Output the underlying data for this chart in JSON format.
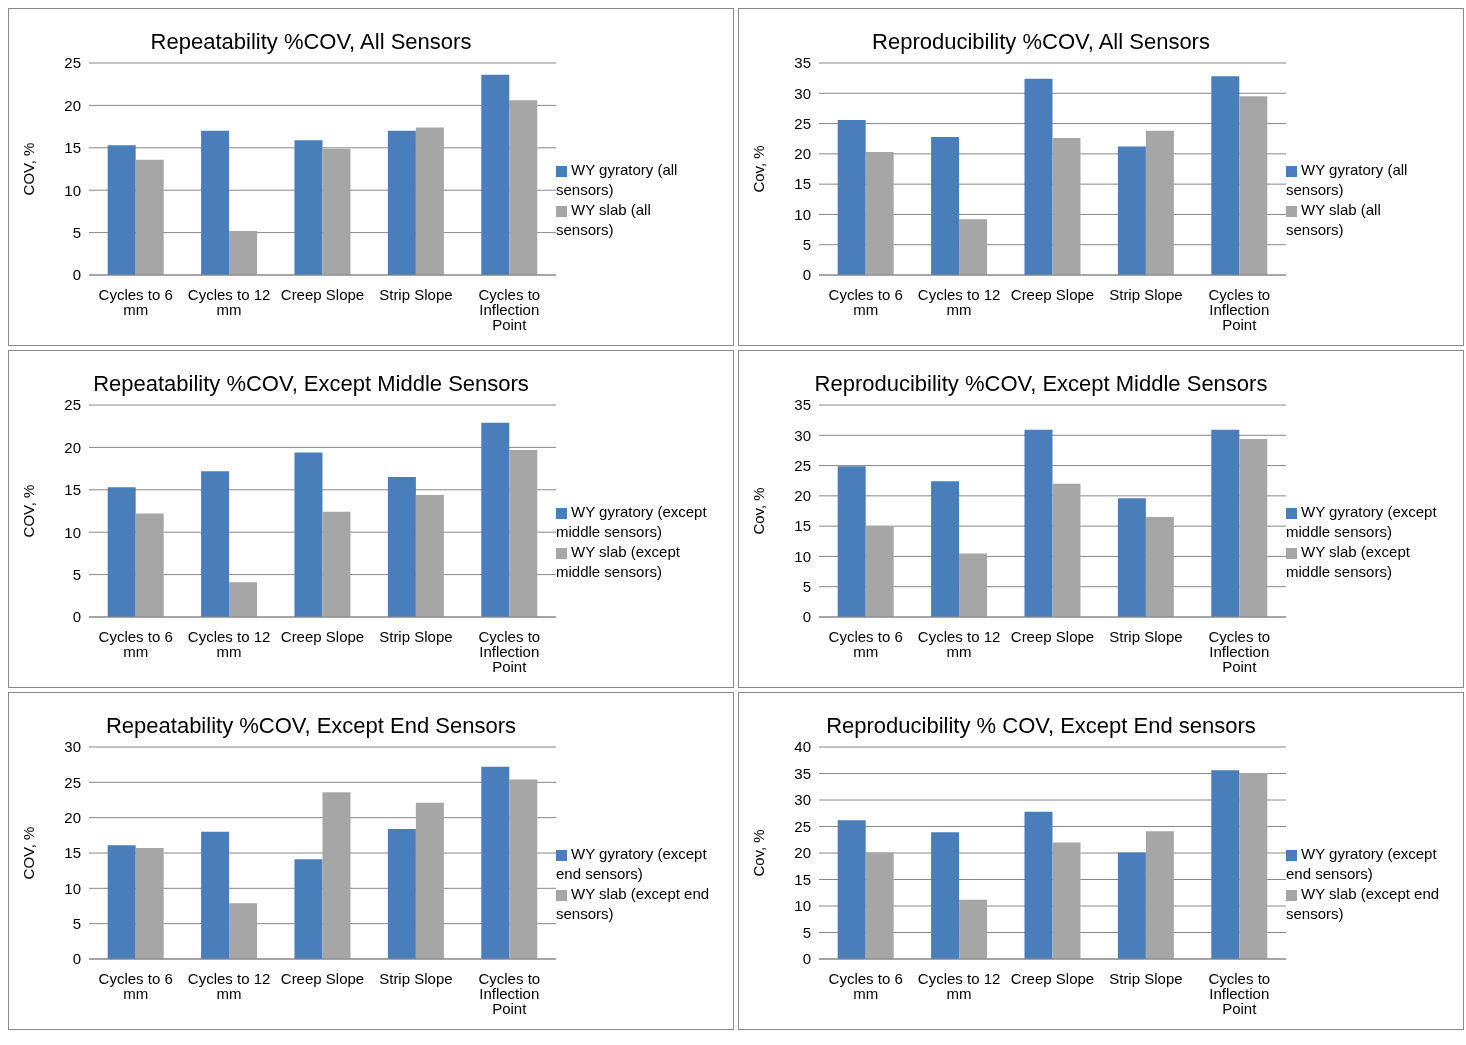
{
  "chart_data": [
    {
      "type": "bar",
      "title": "Repeatability %COV, All Sensors",
      "ylabel": "COV, %",
      "categories": [
        "Cycles to 6 mm",
        "Cycles to 12 mm",
        "Creep Slope",
        "Strip Slope",
        "Cycles to Inflection Point"
      ],
      "series": [
        {
          "name": "WY gyratory (all sensors)",
          "color": "#4a7ebb",
          "values": [
            15.3,
            17.0,
            15.9,
            17.0,
            23.6
          ]
        },
        {
          "name": "WY slab (all sensors)",
          "color": "#a6a6a6",
          "values": [
            13.6,
            5.2,
            14.9,
            17.4,
            20.6
          ]
        }
      ],
      "ylim": [
        0,
        25
      ],
      "yticks": [
        0,
        5,
        10,
        15,
        20,
        25
      ],
      "grid": "y",
      "legend": "right"
    },
    {
      "type": "bar",
      "title": "Reproducibility %COV, All Sensors",
      "ylabel": "Cov, %",
      "categories": [
        "Cycles to 6 mm",
        "Cycles to 12 mm",
        "Creep Slope",
        "Strip Slope",
        "Cycles to Inflection Point"
      ],
      "series": [
        {
          "name": "WY gyratory (all sensors)",
          "color": "#4a7ebb",
          "values": [
            25.6,
            22.8,
            32.4,
            21.2,
            32.8
          ]
        },
        {
          "name": "WY slab (all sensors)",
          "color": "#a6a6a6",
          "values": [
            20.3,
            9.2,
            22.6,
            23.8,
            29.5
          ]
        }
      ],
      "ylim": [
        0,
        35
      ],
      "yticks": [
        0,
        5,
        10,
        15,
        20,
        25,
        30,
        35
      ],
      "grid": "y",
      "legend": "right"
    },
    {
      "type": "bar",
      "title": "Repeatability %COV, Except Middle Sensors",
      "ylabel": "COV, %",
      "categories": [
        "Cycles to 6 mm",
        "Cycles to 12 mm",
        "Creep Slope",
        "Strip Slope",
        "Cycles to Inflection Point"
      ],
      "series": [
        {
          "name": "WY gyratory (except middle sensors)",
          "color": "#4a7ebb",
          "values": [
            15.3,
            17.2,
            19.4,
            16.5,
            22.9
          ]
        },
        {
          "name": "WY slab (except middle sensors)",
          "color": "#a6a6a6",
          "values": [
            12.2,
            4.1,
            12.4,
            14.4,
            19.7
          ]
        }
      ],
      "ylim": [
        0,
        25
      ],
      "yticks": [
        0,
        5,
        10,
        15,
        20,
        25
      ],
      "grid": "y",
      "legend": "right"
    },
    {
      "type": "bar",
      "title": "Reproducibility %COV, Except Middle Sensors",
      "ylabel": "Cov, %",
      "categories": [
        "Cycles to 6 mm",
        "Cycles to 12 mm",
        "Creep Slope",
        "Strip Slope",
        "Cycles to Inflection Point"
      ],
      "series": [
        {
          "name": "WY gyratory (except middle sensors)",
          "color": "#4a7ebb",
          "values": [
            24.9,
            22.4,
            30.9,
            19.6,
            30.9
          ]
        },
        {
          "name": "WY slab (except middle sensors)",
          "color": "#a6a6a6",
          "values": [
            15.0,
            10.5,
            22.0,
            16.5,
            29.4
          ]
        }
      ],
      "ylim": [
        0,
        35
      ],
      "yticks": [
        0,
        5,
        10,
        15,
        20,
        25,
        30,
        35
      ],
      "grid": "y",
      "legend": "right"
    },
    {
      "type": "bar",
      "title": "Repeatability %COV, Except End Sensors",
      "ylabel": "COV, %",
      "categories": [
        "Cycles to 6 mm",
        "Cycles to 12 mm",
        "Creep Slope",
        "Strip Slope",
        "Cycles to Inflection Point"
      ],
      "series": [
        {
          "name": "WY gyratory (except end sensors)",
          "color": "#4a7ebb",
          "values": [
            16.1,
            18.0,
            14.1,
            18.4,
            27.2
          ]
        },
        {
          "name": "WY slab (except end sensors)",
          "color": "#a6a6a6",
          "values": [
            15.7,
            7.9,
            23.6,
            22.1,
            25.4
          ]
        }
      ],
      "ylim": [
        0,
        30
      ],
      "yticks": [
        0,
        5,
        10,
        15,
        20,
        25,
        30
      ],
      "grid": "y",
      "legend": "right"
    },
    {
      "type": "bar",
      "title": "Reproducibility % COV, Except End sensors",
      "ylabel": "Cov, %",
      "categories": [
        "Cycles to 6 mm",
        "Cycles to 12 mm",
        "Creep Slope",
        "Strip Slope",
        "Cycles to Inflection Point"
      ],
      "series": [
        {
          "name": "WY gyratory (except end sensors)",
          "color": "#4a7ebb",
          "values": [
            26.2,
            23.9,
            27.8,
            20.1,
            35.6
          ]
        },
        {
          "name": "WY slab (except end sensors)",
          "color": "#a6a6a6",
          "values": [
            20.1,
            11.2,
            22.0,
            24.1,
            35.1
          ]
        }
      ],
      "ylim": [
        0,
        40
      ],
      "yticks": [
        0,
        5,
        10,
        15,
        20,
        25,
        30,
        35,
        40
      ],
      "grid": "y",
      "legend": "right"
    }
  ]
}
